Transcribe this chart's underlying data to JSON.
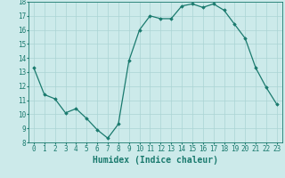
{
  "x": [
    0,
    1,
    2,
    3,
    4,
    5,
    6,
    7,
    8,
    9,
    10,
    11,
    12,
    13,
    14,
    15,
    16,
    17,
    18,
    19,
    20,
    21,
    22,
    23
  ],
  "y": [
    13.3,
    11.4,
    11.1,
    10.1,
    10.4,
    9.7,
    8.9,
    8.3,
    9.3,
    13.8,
    16.0,
    17.0,
    16.8,
    16.8,
    17.7,
    17.85,
    17.6,
    17.85,
    17.4,
    16.4,
    15.4,
    13.3,
    11.9,
    10.7
  ],
  "xlabel": "Humidex (Indice chaleur)",
  "ylim": [
    8,
    18
  ],
  "xlim": [
    -0.5,
    23.5
  ],
  "yticks": [
    8,
    9,
    10,
    11,
    12,
    13,
    14,
    15,
    16,
    17,
    18
  ],
  "xticks": [
    0,
    1,
    2,
    3,
    4,
    5,
    6,
    7,
    8,
    9,
    10,
    11,
    12,
    13,
    14,
    15,
    16,
    17,
    18,
    19,
    20,
    21,
    22,
    23
  ],
  "line_color": "#1a7a6e",
  "marker": "D",
  "marker_size": 1.8,
  "bg_color": "#cceaea",
  "grid_color": "#aad4d4",
  "xlabel_fontsize": 7,
  "tick_fontsize": 5.5,
  "linewidth": 0.9
}
